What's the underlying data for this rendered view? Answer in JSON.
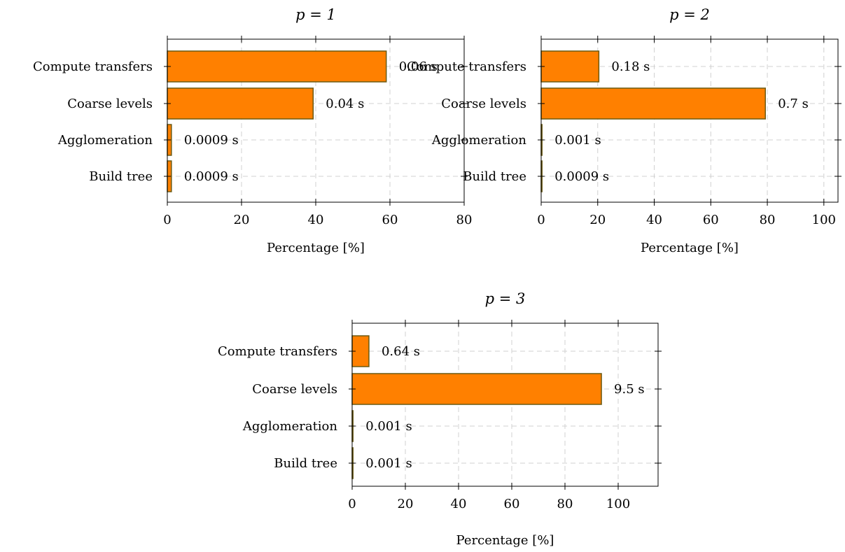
{
  "chart_data": [
    {
      "type": "bar",
      "orientation": "horizontal",
      "title": "p = 1",
      "xlabel": "Percentage [%]",
      "ylabel": "",
      "xlim": [
        0,
        80
      ],
      "xticks": [
        0,
        20,
        40,
        60,
        80
      ],
      "categories": [
        "Compute transfers",
        "Coarse levels",
        "Agglomeration",
        "Build tree"
      ],
      "values": [
        59,
        39.3,
        1.1,
        1.1
      ],
      "data_labels": [
        "0.06 s",
        "0.04 s",
        "0.0009 s",
        "0.0009 s"
      ],
      "bar_color": "#ff8000",
      "bar_edge_color": "#6b5a12",
      "grid": true
    },
    {
      "type": "bar",
      "orientation": "horizontal",
      "title": "p = 2",
      "xlabel": "Percentage [%]",
      "ylabel": "",
      "xlim": [
        0,
        105
      ],
      "xticks": [
        0,
        20,
        40,
        60,
        80,
        100
      ],
      "categories": [
        "Compute transfers",
        "Coarse levels",
        "Agglomeration",
        "Build tree"
      ],
      "values": [
        20.4,
        79.3,
        0.15,
        0.13
      ],
      "data_labels": [
        "0.18 s",
        "0.7 s",
        "0.001 s",
        "0.0009 s"
      ],
      "bar_color": "#ff8000",
      "bar_edge_color": "#6b5a12",
      "grid": true
    },
    {
      "type": "bar",
      "orientation": "horizontal",
      "title": "p = 3",
      "xlabel": "Percentage [%]",
      "ylabel": "",
      "xlim": [
        0,
        115
      ],
      "xticks": [
        0,
        20,
        40,
        60,
        80,
        100
      ],
      "categories": [
        "Compute transfers",
        "Coarse levels",
        "Agglomeration",
        "Build tree"
      ],
      "values": [
        6.3,
        93.7,
        0.01,
        0.01
      ],
      "data_labels": [
        "0.64 s",
        "9.5 s",
        "0.001 s",
        "0.001 s"
      ],
      "bar_color": "#ff8000",
      "bar_edge_color": "#6b5a12",
      "grid": true
    }
  ]
}
